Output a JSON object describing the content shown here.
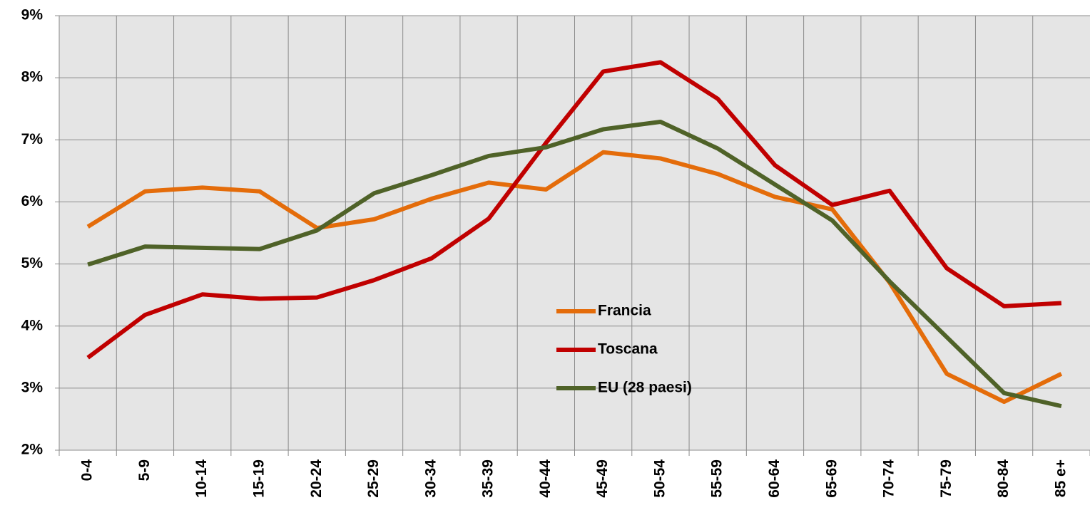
{
  "chart_data": {
    "type": "line",
    "categories": [
      "0-4",
      "5-9",
      "10-14",
      "15-19",
      "20-24",
      "25-29",
      "30-34",
      "35-39",
      "40-44",
      "45-49",
      "50-54",
      "55-59",
      "60-64",
      "65-69",
      "70-74",
      "75-79",
      "80-84",
      "85 e+"
    ],
    "series": [
      {
        "name": "Francia",
        "color": "#e46c0a",
        "values": [
          5.6,
          6.17,
          6.23,
          6.17,
          5.58,
          5.72,
          6.05,
          6.31,
          6.2,
          6.8,
          6.7,
          6.45,
          6.08,
          5.88,
          4.7,
          3.23,
          2.78,
          3.23
        ]
      },
      {
        "name": "Toscana",
        "color": "#c00000",
        "values": [
          3.49,
          4.18,
          4.51,
          4.44,
          4.46,
          4.74,
          5.09,
          5.73,
          6.95,
          8.1,
          8.25,
          7.66,
          6.59,
          5.95,
          6.18,
          4.93,
          4.32,
          4.37
        ]
      },
      {
        "name": "EU (28 paesi)",
        "color": "#4f6228",
        "values": [
          4.99,
          5.28,
          5.26,
          5.24,
          5.54,
          6.14,
          6.43,
          6.74,
          6.88,
          7.17,
          7.29,
          6.86,
          6.28,
          5.7,
          4.72,
          3.82,
          2.92,
          2.71
        ]
      }
    ],
    "ylim": [
      2,
      9
    ],
    "yticks": [
      {
        "value": 2,
        "label": "2%"
      },
      {
        "value": 3,
        "label": "3%"
      },
      {
        "value": 4,
        "label": "4%"
      },
      {
        "value": 5,
        "label": "5%"
      },
      {
        "value": 6,
        "label": "6%"
      },
      {
        "value": 7,
        "label": "7%"
      },
      {
        "value": 8,
        "label": "8%"
      },
      {
        "value": 9,
        "label": "9%"
      }
    ],
    "grid": true,
    "legend": "lower center"
  }
}
